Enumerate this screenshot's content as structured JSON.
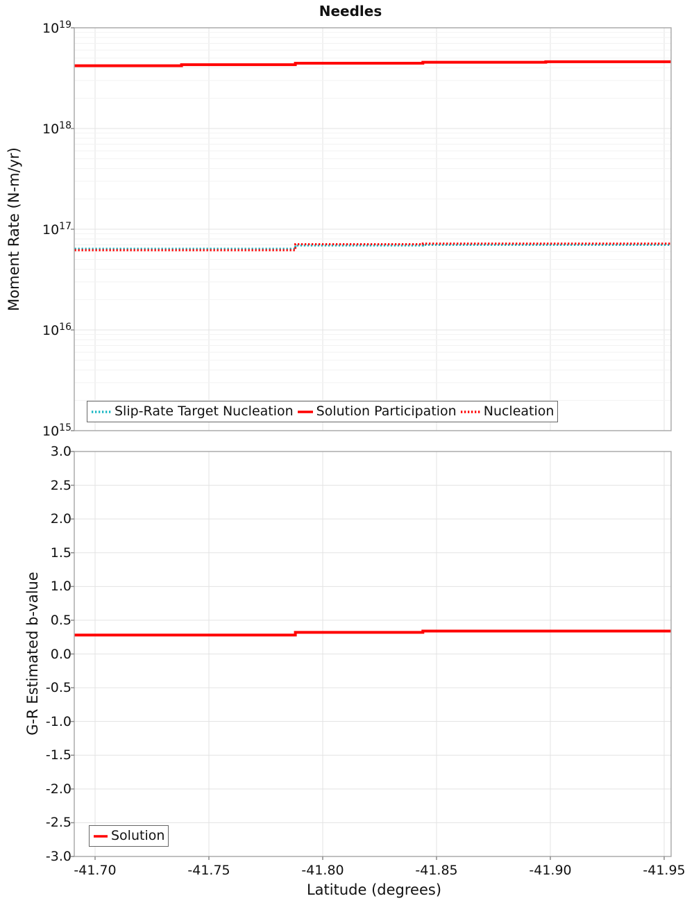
{
  "figure": {
    "title": "Needles"
  },
  "chart_data": [
    {
      "type": "line",
      "panel": "top",
      "title": "Needles",
      "xlabel": "",
      "ylabel": "Moment Rate (N-m/yr)",
      "yscale": "log",
      "ylim": [
        1000000000000000.0,
        1e+19
      ],
      "xlim": [
        -41.691,
        -41.953
      ],
      "x_axis_reversed": true,
      "grid": true,
      "x_ticks": [
        -41.7,
        -41.75,
        -41.8,
        -41.85,
        -41.9,
        -41.95
      ],
      "x_tick_labels_visible": false,
      "y_tick_exponents": [
        19,
        18,
        17,
        16,
        15
      ],
      "legend_position": "lower-left-horizontal",
      "series": [
        {
          "name": "Slip-Rate Target Nucleation",
          "color": "#1CB8C4",
          "line_style": "dotted",
          "line_width": 3,
          "step_lat": [
            -41.691,
            -41.788,
            -41.844,
            -41.953
          ],
          "values": [
            6.4e+16,
            6.9e+16,
            7e+16
          ]
        },
        {
          "name": "Solution Participation",
          "color": "#FF0000",
          "line_style": "solid",
          "line_width": 4,
          "step_lat": [
            -41.691,
            -41.738,
            -41.788,
            -41.844,
            -41.898,
            -41.953
          ],
          "values": [
            4.2e+18,
            4.3e+18,
            4.45e+18,
            4.55e+18,
            4.6e+18
          ]
        },
        {
          "name": "Nucleation",
          "color": "#FF0000",
          "line_style": "dotted",
          "line_width": 3,
          "step_lat": [
            -41.691,
            -41.788,
            -41.844,
            -41.953
          ],
          "values": [
            6.2e+16,
            7.1e+16,
            7.2e+16
          ]
        }
      ]
    },
    {
      "type": "line",
      "panel": "bottom",
      "xlabel": "Latitude (degrees)",
      "ylabel": "G-R Estimated b-value",
      "ylim": [
        -3.0,
        3.0
      ],
      "xlim": [
        -41.691,
        -41.953
      ],
      "x_axis_reversed": true,
      "grid": true,
      "x_ticks": [
        -41.7,
        -41.75,
        -41.8,
        -41.85,
        -41.9,
        -41.95
      ],
      "x_tick_labels": [
        "-41.70",
        "-41.75",
        "-41.80",
        "-41.85",
        "-41.90",
        "-41.95"
      ],
      "y_ticks": [
        3.0,
        2.5,
        2.0,
        1.5,
        1.0,
        0.5,
        0.0,
        -0.5,
        -1.0,
        -1.5,
        -2.0,
        -2.5,
        -3.0
      ],
      "y_tick_labels": [
        "3.0",
        "2.5",
        "2.0",
        "1.5",
        "1.0",
        "0.5",
        "0.0",
        "-0.5",
        "-1.0",
        "-1.5",
        "-2.0",
        "-2.5",
        "-3.0"
      ],
      "legend_position": "lower-left",
      "series": [
        {
          "name": "Solution",
          "color": "#FF0000",
          "line_style": "solid",
          "line_width": 4,
          "step_lat": [
            -41.691,
            -41.788,
            -41.844,
            -41.953
          ],
          "values": [
            0.28,
            0.32,
            0.34
          ]
        }
      ]
    }
  ]
}
